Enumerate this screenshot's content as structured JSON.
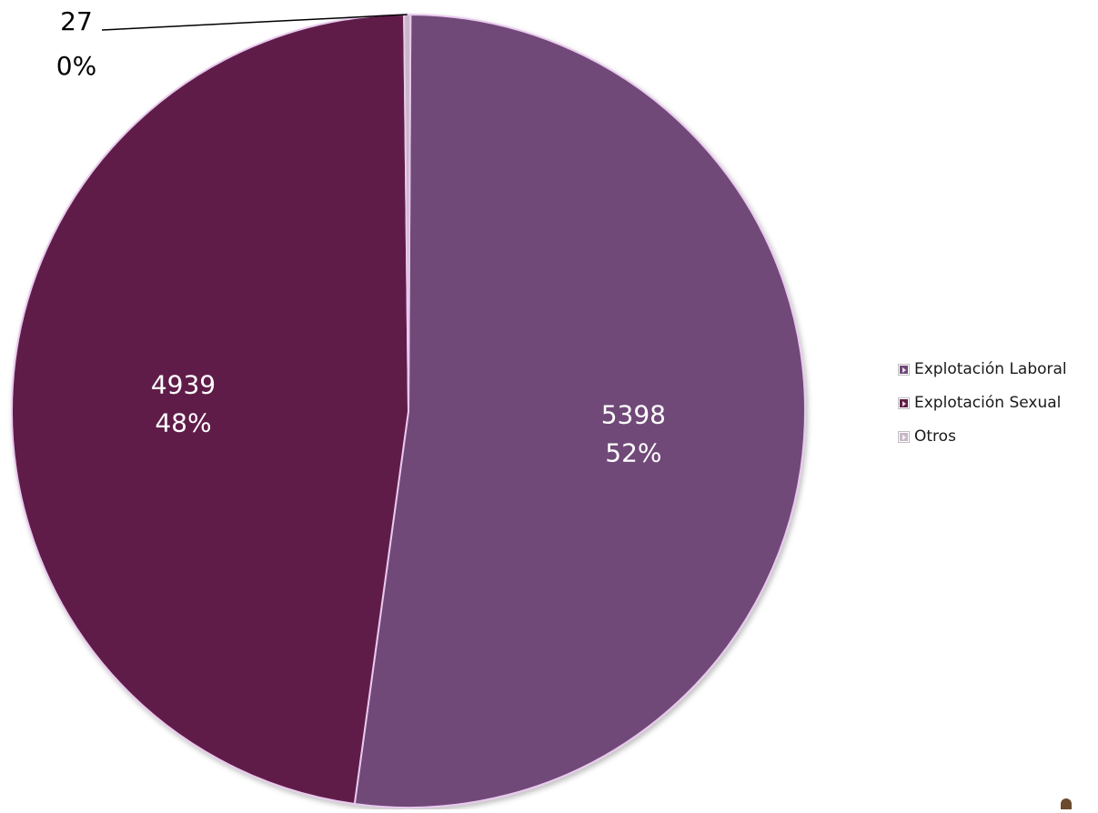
{
  "chart_data": {
    "type": "pie",
    "title": "",
    "slices": [
      {
        "label": "Explotación Laboral",
        "value": 5398,
        "percent_label": "52%",
        "color": "#6f4a78"
      },
      {
        "label": "Explotación Sexual",
        "value": 4939,
        "percent_label": "48%",
        "color": "#611f48"
      },
      {
        "label": "Otros",
        "value": 27,
        "percent_label": "0%",
        "color": "#c9b7c9"
      }
    ],
    "legend_position": "right",
    "data_labels": "value and percent"
  }
}
